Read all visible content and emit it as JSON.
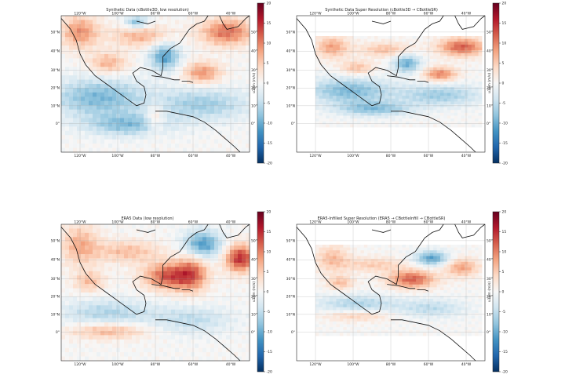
{
  "figure": {
    "colorbar": {
      "label": "u10m (m/s)",
      "ticks": [
        20,
        15,
        10,
        5,
        0,
        -5,
        -10,
        -15,
        -20
      ],
      "colormap": "RdBu_r",
      "colors": [
        "#053061",
        "#2166ac",
        "#4393c3",
        "#92c5de",
        "#d1e5f0",
        "#f7f7f7",
        "#fddbc7",
        "#f4a582",
        "#d6604d",
        "#b2182b",
        "#67001f"
      ]
    },
    "lon_ticks": [
      "120°W",
      "100°W",
      "80°W",
      "60°W",
      "40°W"
    ],
    "lat_ticks": [
      "50°N",
      "40°N",
      "30°N",
      "20°N",
      "10°N",
      "0°"
    ],
    "panels": [
      {
        "title": "Synthetic Data (cBottle3D, low resolution)"
      },
      {
        "title": "Synthetic Data Super Resolution (cBottle3D → CBottleSR)"
      },
      {
        "title": "ERA5 Data (low resolution)"
      },
      {
        "title": "ERA5-Infilled Super Resolution (ERA5 → CBottleInfill → CBottleSR)"
      }
    ]
  }
}
